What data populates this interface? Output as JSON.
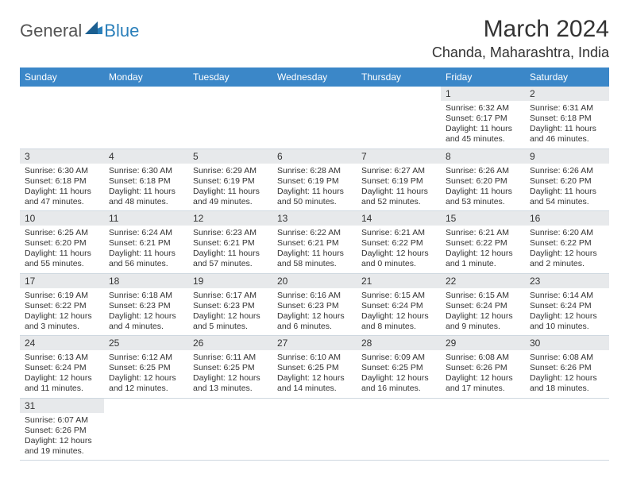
{
  "logo": {
    "text_general": "General",
    "text_blue": "Blue"
  },
  "header": {
    "title": "March 2024",
    "location": "Chanda, Maharashtra, India"
  },
  "colors": {
    "header_bar": "#3b87c8",
    "daynum_bg": "#e7e9eb",
    "row_border": "#cfd8e0",
    "logo_gray": "#555555",
    "logo_blue": "#2a7fba",
    "text": "#333333",
    "bg": "#ffffff"
  },
  "dayHeaders": [
    "Sunday",
    "Monday",
    "Tuesday",
    "Wednesday",
    "Thursday",
    "Friday",
    "Saturday"
  ],
  "weeks": [
    [
      null,
      null,
      null,
      null,
      null,
      {
        "num": "1",
        "sunrise": "Sunrise: 6:32 AM",
        "sunset": "Sunset: 6:17 PM",
        "daylight": "Daylight: 11 hours and 45 minutes."
      },
      {
        "num": "2",
        "sunrise": "Sunrise: 6:31 AM",
        "sunset": "Sunset: 6:18 PM",
        "daylight": "Daylight: 11 hours and 46 minutes."
      }
    ],
    [
      {
        "num": "3",
        "sunrise": "Sunrise: 6:30 AM",
        "sunset": "Sunset: 6:18 PM",
        "daylight": "Daylight: 11 hours and 47 minutes."
      },
      {
        "num": "4",
        "sunrise": "Sunrise: 6:30 AM",
        "sunset": "Sunset: 6:18 PM",
        "daylight": "Daylight: 11 hours and 48 minutes."
      },
      {
        "num": "5",
        "sunrise": "Sunrise: 6:29 AM",
        "sunset": "Sunset: 6:19 PM",
        "daylight": "Daylight: 11 hours and 49 minutes."
      },
      {
        "num": "6",
        "sunrise": "Sunrise: 6:28 AM",
        "sunset": "Sunset: 6:19 PM",
        "daylight": "Daylight: 11 hours and 50 minutes."
      },
      {
        "num": "7",
        "sunrise": "Sunrise: 6:27 AM",
        "sunset": "Sunset: 6:19 PM",
        "daylight": "Daylight: 11 hours and 52 minutes."
      },
      {
        "num": "8",
        "sunrise": "Sunrise: 6:26 AM",
        "sunset": "Sunset: 6:20 PM",
        "daylight": "Daylight: 11 hours and 53 minutes."
      },
      {
        "num": "9",
        "sunrise": "Sunrise: 6:26 AM",
        "sunset": "Sunset: 6:20 PM",
        "daylight": "Daylight: 11 hours and 54 minutes."
      }
    ],
    [
      {
        "num": "10",
        "sunrise": "Sunrise: 6:25 AM",
        "sunset": "Sunset: 6:20 PM",
        "daylight": "Daylight: 11 hours and 55 minutes."
      },
      {
        "num": "11",
        "sunrise": "Sunrise: 6:24 AM",
        "sunset": "Sunset: 6:21 PM",
        "daylight": "Daylight: 11 hours and 56 minutes."
      },
      {
        "num": "12",
        "sunrise": "Sunrise: 6:23 AM",
        "sunset": "Sunset: 6:21 PM",
        "daylight": "Daylight: 11 hours and 57 minutes."
      },
      {
        "num": "13",
        "sunrise": "Sunrise: 6:22 AM",
        "sunset": "Sunset: 6:21 PM",
        "daylight": "Daylight: 11 hours and 58 minutes."
      },
      {
        "num": "14",
        "sunrise": "Sunrise: 6:21 AM",
        "sunset": "Sunset: 6:22 PM",
        "daylight": "Daylight: 12 hours and 0 minutes."
      },
      {
        "num": "15",
        "sunrise": "Sunrise: 6:21 AM",
        "sunset": "Sunset: 6:22 PM",
        "daylight": "Daylight: 12 hours and 1 minute."
      },
      {
        "num": "16",
        "sunrise": "Sunrise: 6:20 AM",
        "sunset": "Sunset: 6:22 PM",
        "daylight": "Daylight: 12 hours and 2 minutes."
      }
    ],
    [
      {
        "num": "17",
        "sunrise": "Sunrise: 6:19 AM",
        "sunset": "Sunset: 6:22 PM",
        "daylight": "Daylight: 12 hours and 3 minutes."
      },
      {
        "num": "18",
        "sunrise": "Sunrise: 6:18 AM",
        "sunset": "Sunset: 6:23 PM",
        "daylight": "Daylight: 12 hours and 4 minutes."
      },
      {
        "num": "19",
        "sunrise": "Sunrise: 6:17 AM",
        "sunset": "Sunset: 6:23 PM",
        "daylight": "Daylight: 12 hours and 5 minutes."
      },
      {
        "num": "20",
        "sunrise": "Sunrise: 6:16 AM",
        "sunset": "Sunset: 6:23 PM",
        "daylight": "Daylight: 12 hours and 6 minutes."
      },
      {
        "num": "21",
        "sunrise": "Sunrise: 6:15 AM",
        "sunset": "Sunset: 6:24 PM",
        "daylight": "Daylight: 12 hours and 8 minutes."
      },
      {
        "num": "22",
        "sunrise": "Sunrise: 6:15 AM",
        "sunset": "Sunset: 6:24 PM",
        "daylight": "Daylight: 12 hours and 9 minutes."
      },
      {
        "num": "23",
        "sunrise": "Sunrise: 6:14 AM",
        "sunset": "Sunset: 6:24 PM",
        "daylight": "Daylight: 12 hours and 10 minutes."
      }
    ],
    [
      {
        "num": "24",
        "sunrise": "Sunrise: 6:13 AM",
        "sunset": "Sunset: 6:24 PM",
        "daylight": "Daylight: 12 hours and 11 minutes."
      },
      {
        "num": "25",
        "sunrise": "Sunrise: 6:12 AM",
        "sunset": "Sunset: 6:25 PM",
        "daylight": "Daylight: 12 hours and 12 minutes."
      },
      {
        "num": "26",
        "sunrise": "Sunrise: 6:11 AM",
        "sunset": "Sunset: 6:25 PM",
        "daylight": "Daylight: 12 hours and 13 minutes."
      },
      {
        "num": "27",
        "sunrise": "Sunrise: 6:10 AM",
        "sunset": "Sunset: 6:25 PM",
        "daylight": "Daylight: 12 hours and 14 minutes."
      },
      {
        "num": "28",
        "sunrise": "Sunrise: 6:09 AM",
        "sunset": "Sunset: 6:25 PM",
        "daylight": "Daylight: 12 hours and 16 minutes."
      },
      {
        "num": "29",
        "sunrise": "Sunrise: 6:08 AM",
        "sunset": "Sunset: 6:26 PM",
        "daylight": "Daylight: 12 hours and 17 minutes."
      },
      {
        "num": "30",
        "sunrise": "Sunrise: 6:08 AM",
        "sunset": "Sunset: 6:26 PM",
        "daylight": "Daylight: 12 hours and 18 minutes."
      }
    ],
    [
      {
        "num": "31",
        "sunrise": "Sunrise: 6:07 AM",
        "sunset": "Sunset: 6:26 PM",
        "daylight": "Daylight: 12 hours and 19 minutes."
      },
      null,
      null,
      null,
      null,
      null,
      null
    ]
  ]
}
